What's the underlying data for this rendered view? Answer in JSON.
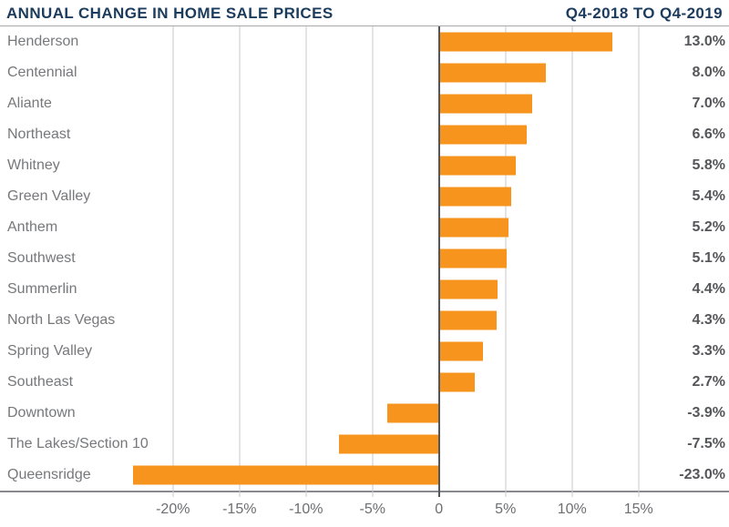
{
  "header": {
    "title": "ANNUAL CHANGE IN HOME SALE PRICES",
    "period": "Q4-2018 TO Q4-2019"
  },
  "chart_data": {
    "type": "bar",
    "orientation": "horizontal",
    "title": "ANNUAL CHANGE IN HOME SALE PRICES",
    "subtitle": "Q4-2018 TO Q4-2019",
    "categories": [
      "Henderson",
      "Centennial",
      "Aliante",
      "Northeast",
      "Whitney",
      "Green Valley",
      "Anthem",
      "Southwest",
      "Summerlin",
      "North Las Vegas",
      "Spring Valley",
      "Southeast",
      "Downtown",
      "The Lakes/Section 10",
      "Queensridge"
    ],
    "values": [
      13.0,
      8.0,
      7.0,
      6.6,
      5.8,
      5.4,
      5.2,
      5.1,
      4.4,
      4.3,
      3.3,
      2.7,
      -3.9,
      -7.5,
      -23.0
    ],
    "value_labels": [
      "13.0%",
      "8.0%",
      "7.0%",
      "6.6%",
      "5.8%",
      "5.4%",
      "5.2%",
      "5.1%",
      "4.4%",
      "4.3%",
      "3.3%",
      "2.7%",
      "-3.9%",
      "-7.5%",
      "-23.0%"
    ],
    "x_ticks": [
      -20,
      -15,
      -10,
      -5,
      0,
      5,
      10,
      15
    ],
    "x_tick_labels": [
      "-20%",
      "-15%",
      "-10%",
      "-5%",
      "0",
      "5%",
      "10%",
      "15%"
    ],
    "xlim": [
      -33,
      21.8
    ],
    "xlabel": "",
    "ylabel": "",
    "grid": true,
    "legend": false,
    "bar_color": "#F7941E",
    "zero_line_color": "#54565B",
    "title_color": "#1C3C5E",
    "label_color": "#77787B",
    "value_color": "#55565A"
  }
}
